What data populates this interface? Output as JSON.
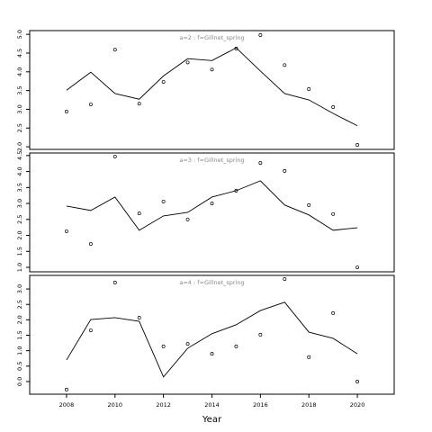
{
  "chart_data": [
    {
      "type": "line",
      "title": "a=2 : f=Gillnet_spring",
      "x": [
        2008,
        2009,
        2010,
        2011,
        2012,
        2013,
        2014,
        2015,
        2016,
        2017,
        2018,
        2019,
        2020
      ],
      "xlim": [
        2006.48,
        2021.52
      ],
      "ylim": [
        1.93,
        5.1
      ],
      "yticks": [
        {
          "value": 2,
          "label": "2.0"
        },
        2.5,
        {
          "value": 3,
          "label": "3.0"
        },
        3.5,
        {
          "value": 4,
          "label": "4.0"
        },
        4.5,
        {
          "value": 5,
          "label": "5.0"
        }
      ],
      "series": [
        {
          "style": "line",
          "color": "#000000",
          "values": [
            3.51,
            3.99,
            3.42,
            3.27,
            3.89,
            4.35,
            4.3,
            4.64,
            4.02,
            3.42,
            3.25,
            2.89,
            2.56
          ]
        },
        {
          "style": "points",
          "color": "#000000",
          "values": [
            2.94,
            3.13,
            4.59,
            3.15,
            3.73,
            4.25,
            4.06,
            4.62,
            4.98,
            4.18,
            3.54,
            3.06,
            2.05
          ]
        }
      ]
    },
    {
      "type": "line",
      "title": "a=3 : f=Gillnet_spring",
      "x": [
        2008,
        2009,
        2010,
        2011,
        2012,
        2013,
        2014,
        2015,
        2016,
        2017,
        2018,
        2019,
        2020
      ],
      "xlim": [
        2006.48,
        2021.52
      ],
      "ylim": [
        0.86,
        4.58
      ],
      "yticks": [
        {
          "value": 1,
          "label": "1.0"
        },
        1.5,
        {
          "value": 2,
          "label": "2.0"
        },
        2.5,
        {
          "value": 3,
          "label": "3.0"
        },
        3.5,
        {
          "value": 4,
          "label": "4.0"
        },
        4.5
      ],
      "series": [
        {
          "style": "line",
          "color": "#000000",
          "values": [
            2.92,
            2.78,
            3.2,
            2.16,
            2.61,
            2.72,
            3.2,
            3.4,
            3.71,
            2.95,
            2.64,
            2.16,
            2.24
          ]
        },
        {
          "style": "points",
          "color": "#000000",
          "values": [
            2.13,
            1.73,
            4.47,
            2.69,
            3.06,
            2.5,
            3.0,
            3.4,
            4.27,
            4.02,
            2.95,
            2.67,
            1.0
          ]
        }
      ]
    },
    {
      "type": "line",
      "title": "a=4 : f=Gillnet_spring",
      "x": [
        2008,
        2009,
        2010,
        2011,
        2012,
        2013,
        2014,
        2015,
        2016,
        2017,
        2018,
        2019,
        2020
      ],
      "xlim": [
        2006.48,
        2021.52
      ],
      "xticks": [
        2008,
        2010,
        2012,
        2014,
        2016,
        2018,
        2020
      ],
      "xlabel": "Year",
      "ylim": [
        -0.41,
        3.44
      ],
      "yticks": [
        {
          "value": 0,
          "label": "0.0"
        },
        0.5,
        {
          "value": 1,
          "label": "1.0"
        },
        1.5,
        {
          "value": 2,
          "label": "2.0"
        },
        2.5,
        {
          "value": 3,
          "label": "3.0"
        }
      ],
      "series": [
        {
          "style": "line",
          "color": "#000000",
          "values": [
            0.7,
            2.01,
            2.07,
            1.95,
            0.15,
            1.08,
            1.55,
            1.84,
            2.3,
            2.57,
            1.6,
            1.4,
            0.9
          ]
        },
        {
          "style": "points",
          "color": "#000000",
          "values": [
            -0.26,
            1.66,
            3.21,
            2.07,
            1.14,
            1.22,
            0.9,
            1.14,
            1.52,
            3.32,
            0.79,
            2.22,
            0.0
          ]
        }
      ]
    }
  ]
}
